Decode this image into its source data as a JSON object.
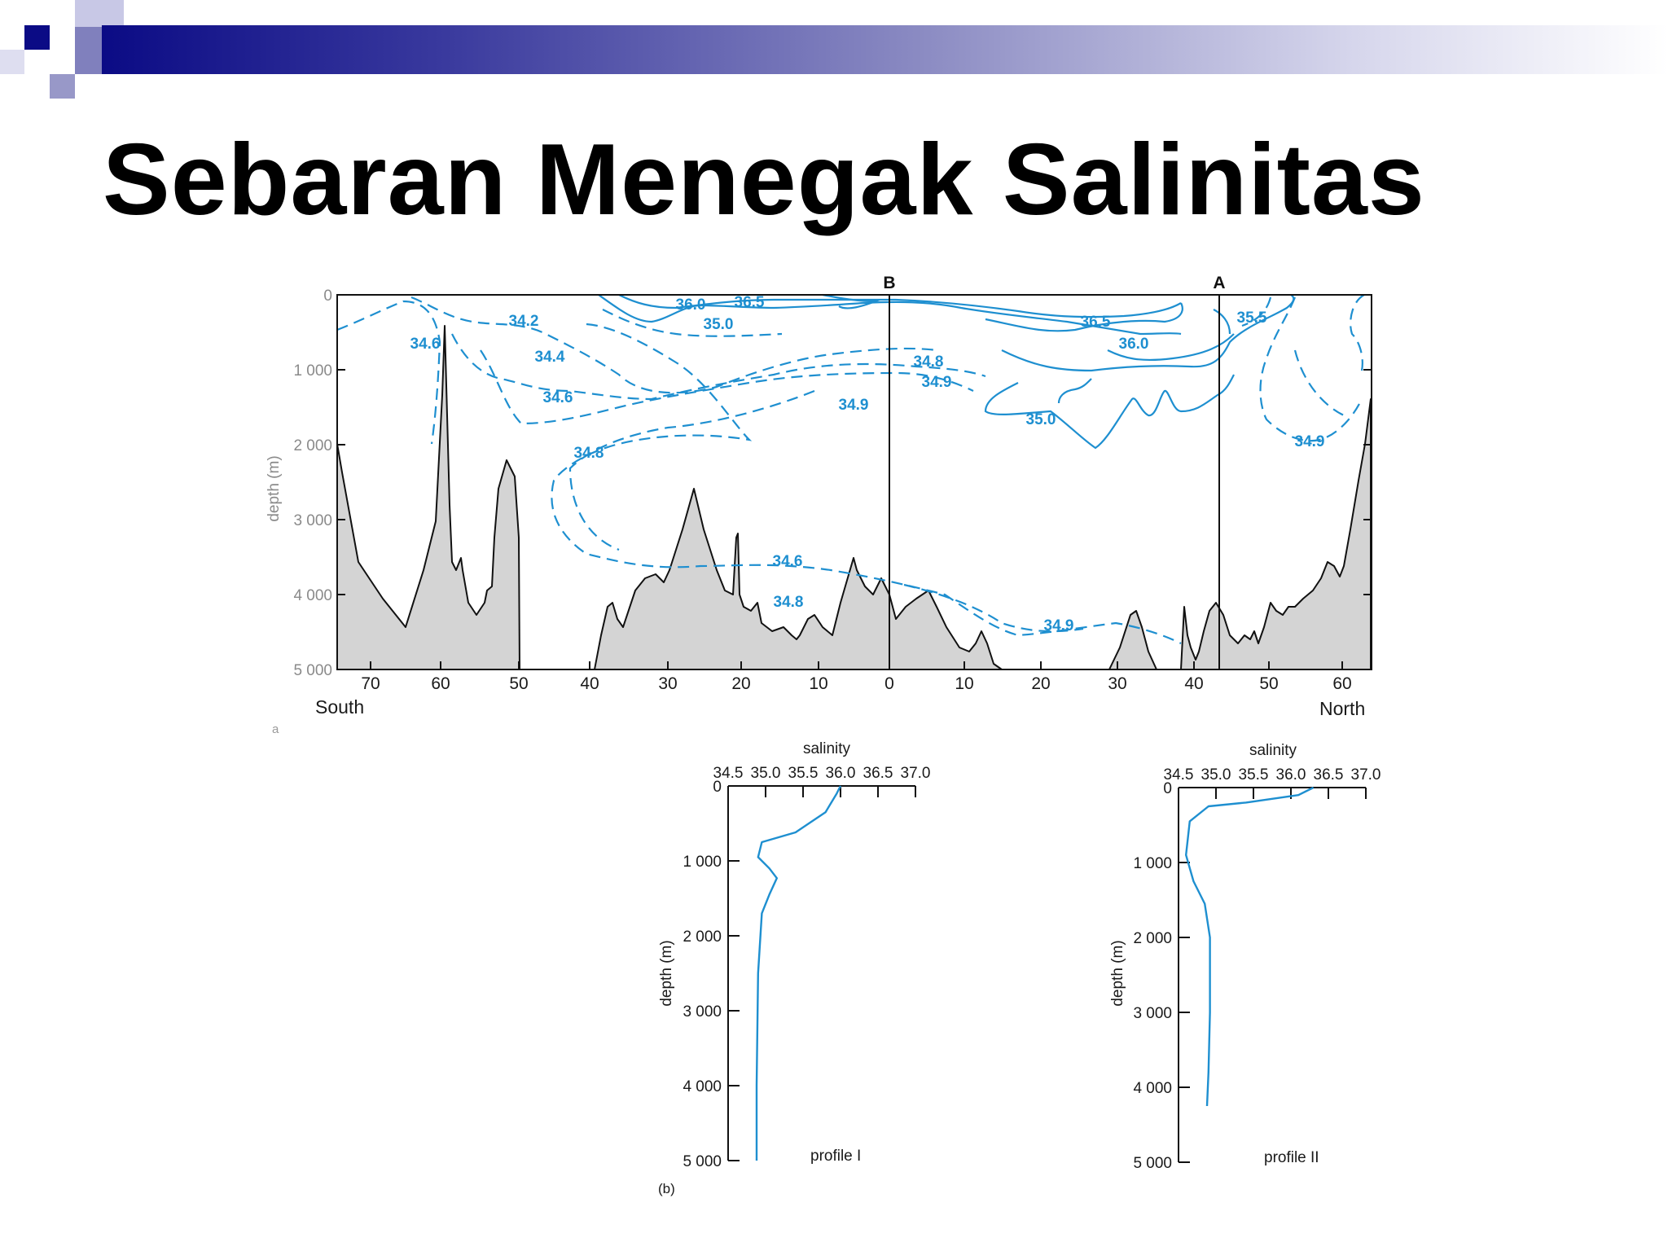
{
  "slide": {
    "title": "Sebaran Menegak Salinitas",
    "colors": {
      "banner_dark": "#0b0b85",
      "banner_light": "#ffffff",
      "isohaline": "#1e8fd0",
      "seafloor": "#d4d4d4"
    }
  },
  "chart_data": [
    {
      "type": "contour-section",
      "xlabel_left": "South",
      "xlabel_right": "North",
      "ylabel": "depth (m)",
      "x_ticks": [
        "70",
        "60",
        "50",
        "40",
        "30",
        "20",
        "10",
        "0",
        "10",
        "20",
        "30",
        "40",
        "50",
        "60"
      ],
      "y_ticks": [
        "0",
        "1 000",
        "2 000",
        "3 000",
        "4 000",
        "5 000"
      ],
      "ylim": [
        0,
        5000
      ],
      "section_markers": [
        "B",
        "A"
      ],
      "panel_label": "a",
      "isohaline_labels": [
        "36.0",
        "36.5",
        "34.2",
        "35.0",
        "34.6",
        "34.4",
        "34.6",
        "34.8",
        "34.9",
        "34.9",
        "34.8",
        "34.6",
        "34.8",
        "34.9",
        "35.0",
        "36.5",
        "36.0",
        "35.5",
        "34.9",
        "34.9"
      ]
    },
    {
      "type": "line",
      "title": "salinity",
      "name": "profile I",
      "ylabel": "depth (m)",
      "x_ticks": [
        "34.5",
        "35.0",
        "35.5",
        "36.0",
        "36.5",
        "37.0"
      ],
      "y_ticks": [
        "0",
        "1 000",
        "2 000",
        "3 000",
        "4 000",
        "5 000"
      ],
      "xlim": [
        34.5,
        37.0
      ],
      "ylim": [
        0,
        5000
      ],
      "y_inverted": true,
      "panel_label": "(b)",
      "x": [
        36.0,
        35.95,
        35.8,
        35.4,
        34.95,
        34.9,
        35.05,
        35.15,
        35.05,
        34.95,
        34.9,
        34.88,
        34.88
      ],
      "y": [
        0,
        100,
        350,
        620,
        750,
        950,
        1100,
        1230,
        1450,
        1700,
        2500,
        4000,
        5000
      ]
    },
    {
      "type": "line",
      "title": "salinity",
      "name": "profile II",
      "ylabel": "depth (m)",
      "x_ticks": [
        "34.5",
        "35.0",
        "35.5",
        "36.0",
        "36.5",
        "37.0"
      ],
      "y_ticks": [
        "0",
        "1 000",
        "2 000",
        "3 000",
        "4 000",
        "5 000"
      ],
      "xlim": [
        34.5,
        37.0
      ],
      "ylim": [
        0,
        5000
      ],
      "y_inverted": true,
      "x": [
        36.3,
        36.1,
        35.4,
        34.9,
        34.65,
        34.6,
        34.7,
        34.85,
        34.92,
        34.92,
        34.9,
        34.88
      ],
      "y": [
        0,
        100,
        200,
        250,
        450,
        900,
        1250,
        1550,
        2000,
        3000,
        3800,
        4250
      ]
    }
  ]
}
